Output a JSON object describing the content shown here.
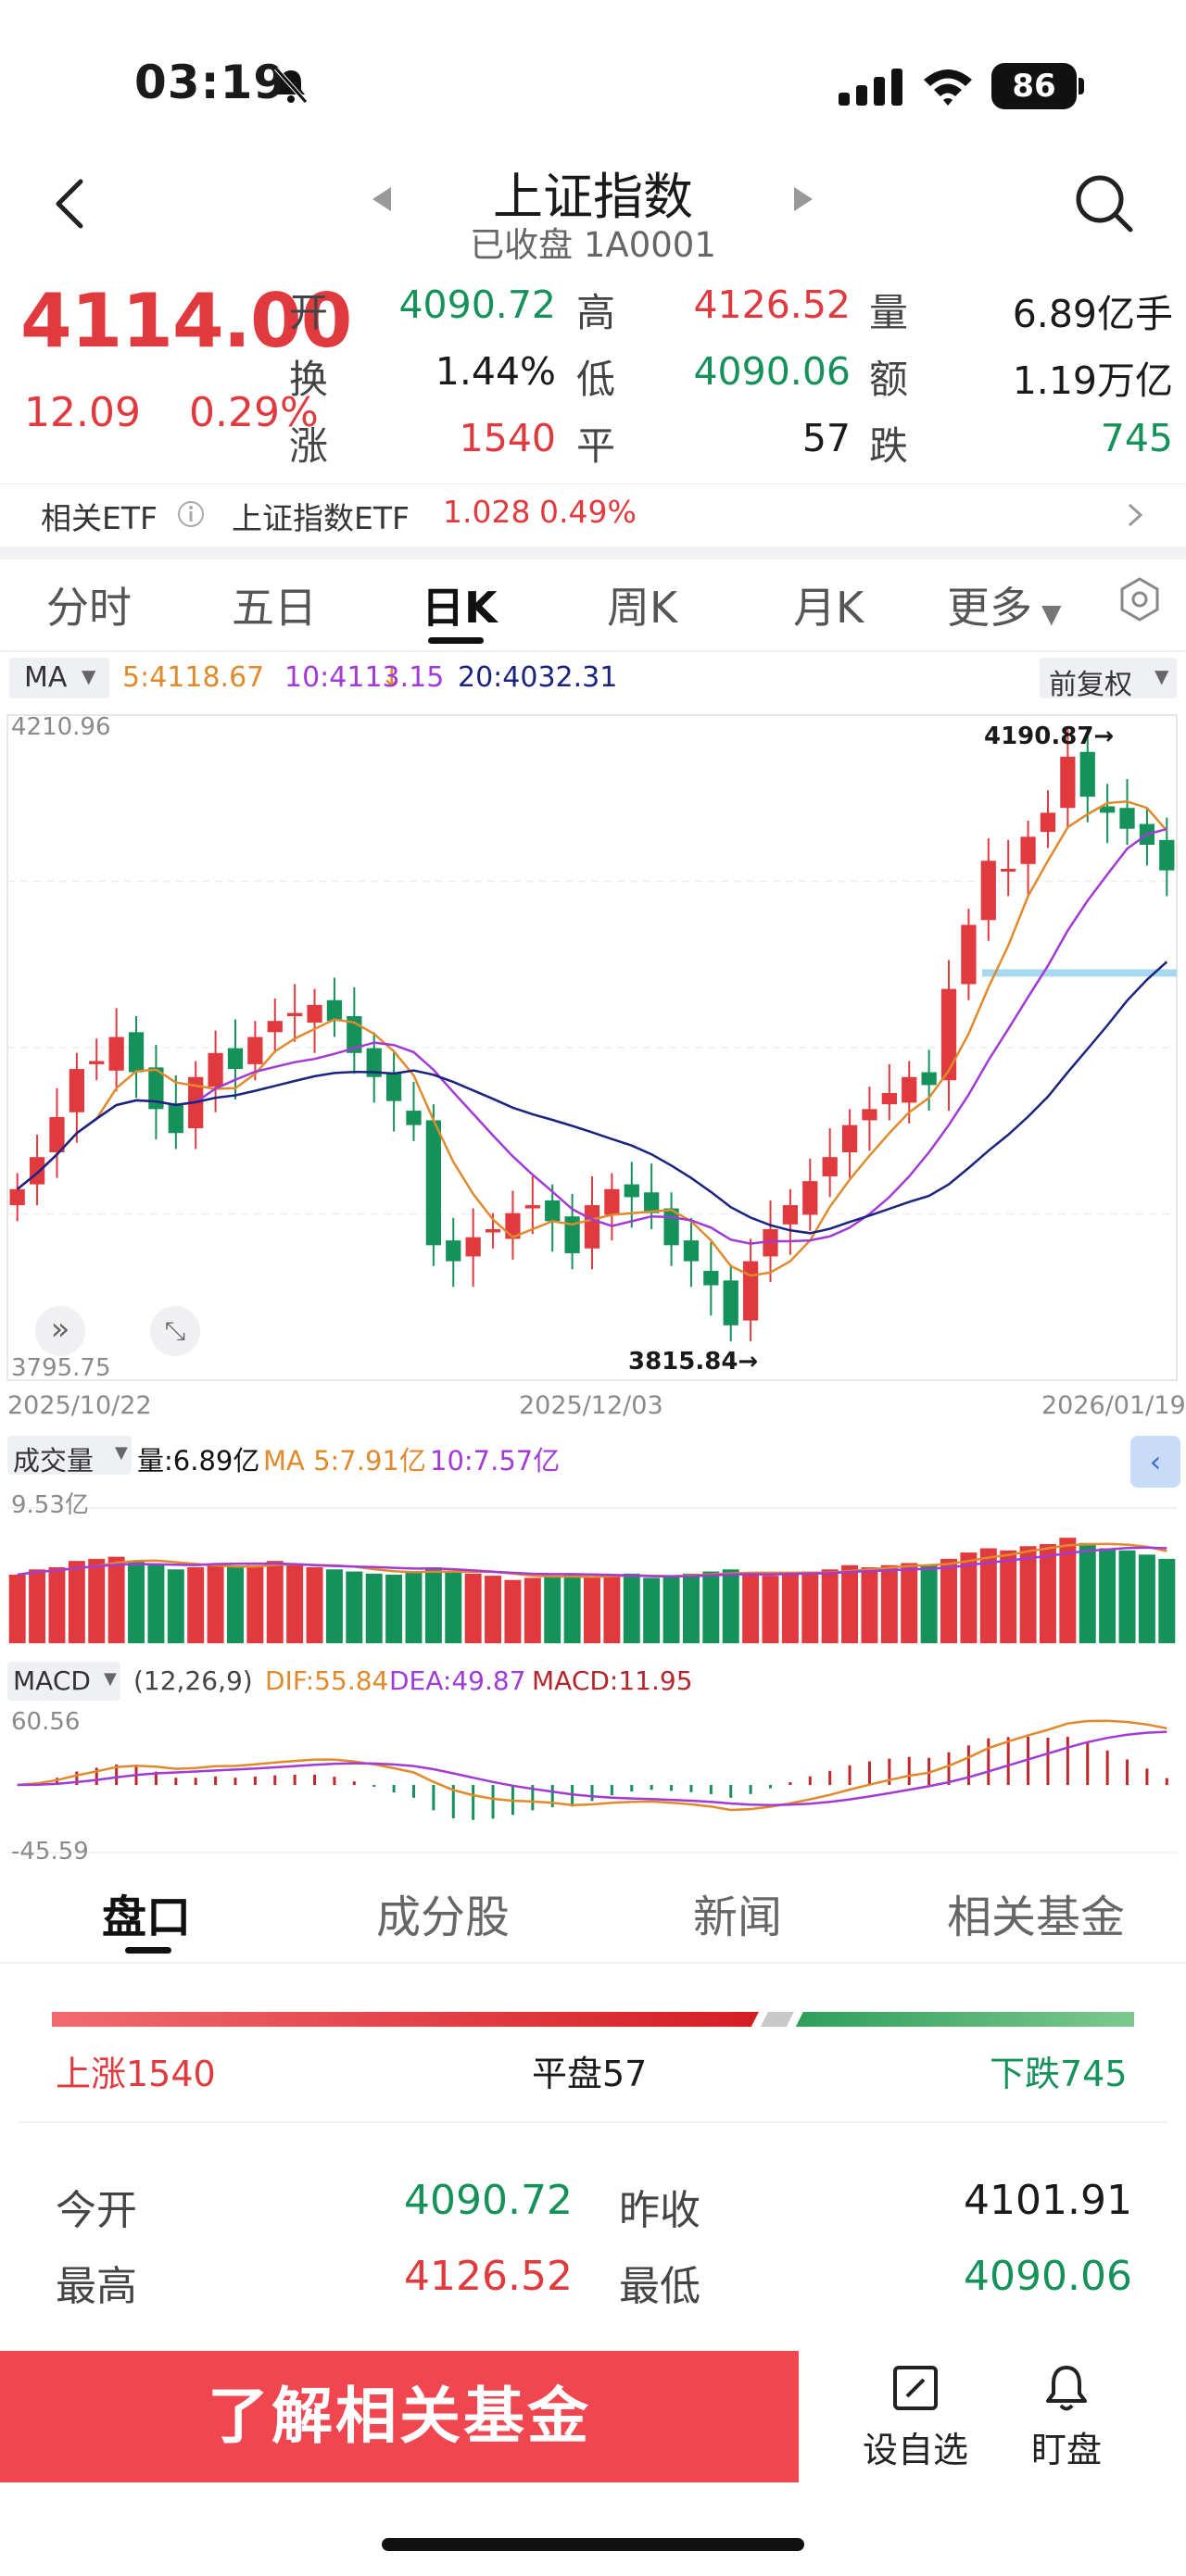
{
  "status": {
    "time": "03:19",
    "battery": "86"
  },
  "header": {
    "title": "上证指数",
    "subtitle": "已收盘 1A0001"
  },
  "quote": {
    "price": "4114.00",
    "change": "12.09",
    "change_pct": "0.29%",
    "fields": [
      {
        "label": "开",
        "value": "4090.72",
        "color": "green"
      },
      {
        "label": "高",
        "value": "4126.52",
        "color": "red"
      },
      {
        "label": "量",
        "value": "6.89亿手",
        "color": "dark"
      },
      {
        "label": "换",
        "value": "1.44%",
        "color": "dark"
      },
      {
        "label": "低",
        "value": "4090.06",
        "color": "green"
      },
      {
        "label": "额",
        "value": "1.19万亿",
        "color": "dark"
      },
      {
        "label": "涨",
        "value": "1540",
        "color": "red"
      },
      {
        "label": "平",
        "value": "57",
        "color": "dark"
      },
      {
        "label": "跌",
        "value": "745",
        "color": "green"
      }
    ]
  },
  "etf": {
    "label": "相关ETF",
    "name": "上证指数ETF",
    "price": "1.028",
    "pct": "0.49%"
  },
  "period_tabs": [
    "分时",
    "五日",
    "日K",
    "周K",
    "月K",
    "更多"
  ],
  "ma": {
    "label": "MA",
    "ma5": "5:4118.67",
    "ma10": "10:4113.15",
    "ma20": "20:4032.31",
    "adjust": "前复权"
  },
  "kline": {
    "ymax_label": "4210.96",
    "ymin_label": "3795.75",
    "high_mark": "4190.87→",
    "low_mark": "3815.84→",
    "dates": [
      "2025/10/22",
      "2025/12/03",
      "2026/01/19"
    ]
  },
  "volume": {
    "label": "成交量",
    "vol": "量:6.89亿",
    "ma5": "MA 5:7.91亿",
    "ma10": "10:7.57亿",
    "max_label": "9.53亿"
  },
  "macd": {
    "label": "MACD",
    "params": "(12,26,9)",
    "dif": "DIF:55.84",
    "dea": "DEA:49.87",
    "macd": "MACD:11.95",
    "max_label": "60.56",
    "min_label": "-45.59"
  },
  "bottom_tabs": [
    "盘口",
    "成分股",
    "新闻",
    "相关基金"
  ],
  "breadth": {
    "up": "上涨1540",
    "flat": "平盘57",
    "down": "下跌745",
    "up_count": 1540,
    "flat_count": 57,
    "down_count": 745
  },
  "stats": [
    {
      "label": "今开",
      "value": "4090.72",
      "color": "green"
    },
    {
      "label": "昨收",
      "value": "4101.91",
      "color": "dark"
    },
    {
      "label": "最高",
      "value": "4126.52",
      "color": "red"
    },
    {
      "label": "最低",
      "value": "4090.06",
      "color": "green"
    }
  ],
  "cta": {
    "label": "了解相关基金"
  },
  "dock": {
    "watch": "设自选",
    "monitor": "盯盘"
  },
  "chart_data": {
    "type": "candlestick",
    "x_start": "2025/10/22",
    "x_mid": "2025/12/03",
    "x_end": "2026/01/19",
    "ylim": [
      3795.75,
      4210.96
    ],
    "close": [
      3915,
      3935,
      3960,
      3990,
      3995,
      4010,
      3988,
      3965,
      3950,
      3985,
      4000,
      3990,
      4010,
      4020,
      4025,
      4030,
      4020,
      4000,
      3985,
      3970,
      3955,
      3880,
      3870,
      3885,
      3890,
      3900,
      3905,
      3895,
      3875,
      3905,
      3915,
      3910,
      3900,
      3880,
      3870,
      3855,
      3830,
      3870,
      3890,
      3905,
      3920,
      3935,
      3955,
      3965,
      3975,
      3985,
      3980,
      4040,
      4080,
      4120,
      4115,
      4135,
      4150,
      4185,
      4160,
      4150,
      4140,
      4130,
      4114
    ],
    "volume_ratio": [
      0.65,
      0.7,
      0.72,
      0.78,
      0.8,
      0.82,
      0.78,
      0.74,
      0.7,
      0.72,
      0.75,
      0.72,
      0.74,
      0.78,
      0.75,
      0.72,
      0.7,
      0.68,
      0.66,
      0.65,
      0.68,
      0.72,
      0.68,
      0.66,
      0.64,
      0.6,
      0.62,
      0.64,
      0.66,
      0.62,
      0.64,
      0.66,
      0.62,
      0.64,
      0.66,
      0.68,
      0.7,
      0.66,
      0.64,
      0.66,
      0.68,
      0.7,
      0.74,
      0.72,
      0.74,
      0.76,
      0.74,
      0.8,
      0.86,
      0.9,
      0.88,
      0.92,
      0.94,
      1.0,
      0.95,
      0.9,
      0.88,
      0.84,
      0.8
    ]
  }
}
